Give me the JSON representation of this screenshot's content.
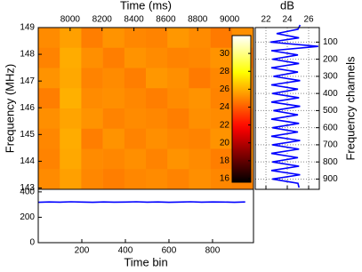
{
  "chart_data": [
    {
      "type": "heatmap",
      "xlabel": "Time (ms)",
      "ylabel": "Frequency (MHz)",
      "xlim": [
        7800,
        9150
      ],
      "xticks": [
        8000,
        8200,
        8400,
        8600,
        8800,
        9000
      ],
      "ylim": [
        142.95,
        149
      ],
      "yticks": [
        143,
        144,
        145,
        146,
        147,
        148,
        149
      ],
      "colormap": "hot",
      "clim": [
        15.6,
        32
      ],
      "cticks": [
        16,
        18,
        20,
        22,
        24,
        26,
        28,
        30
      ],
      "values": [
        [
          25.1,
          25.6,
          24.8,
          25.3,
          25.0,
          24.9,
          25.4,
          25.1,
          24.7,
          25.2
        ],
        [
          24.9,
          25.9,
          25.2,
          24.8,
          25.3,
          25.1,
          24.9,
          25.0,
          25.3,
          24.8
        ],
        [
          25.3,
          25.8,
          24.9,
          25.1,
          24.8,
          25.4,
          25.2,
          24.7,
          25.0,
          25.1
        ],
        [
          24.8,
          26.0,
          25.1,
          25.2,
          25.0,
          24.8,
          25.1,
          25.3,
          24.9,
          25.2
        ],
        [
          25.2,
          25.7,
          25.3,
          24.9,
          25.1,
          25.0,
          24.8,
          25.2,
          25.1,
          24.9
        ],
        [
          25.0,
          25.9,
          24.8,
          25.3,
          24.9,
          25.2,
          25.0,
          24.9,
          25.3,
          25.0
        ],
        [
          24.9,
          25.8,
          25.1,
          25.0,
          25.2,
          24.9,
          25.3,
          25.1,
          24.8,
          25.2
        ],
        [
          25.1,
          25.6,
          25.0,
          24.8,
          25.0,
          25.1,
          24.9,
          25.2,
          25.0,
          24.9
        ]
      ]
    },
    {
      "type": "line",
      "xlabel": "dB",
      "ylabel": "Frequency channels",
      "color": "#0000ff",
      "grid": true,
      "xlim": [
        21,
        27
      ],
      "xticks": [
        22,
        24,
        26
      ],
      "ylim": [
        15,
        960
      ],
      "yticks": [
        100,
        200,
        300,
        400,
        500,
        600,
        700,
        800,
        900
      ],
      "channels": [
        0,
        25,
        50,
        75,
        100,
        125,
        150,
        175,
        200,
        225,
        250,
        275,
        300,
        325,
        350,
        375,
        400,
        425,
        450,
        475,
        500,
        525,
        550,
        575,
        600,
        625,
        650,
        675,
        700,
        725,
        750,
        775,
        800,
        825,
        850,
        875,
        900,
        925,
        950
      ],
      "values": [
        25.2,
        25.0,
        23.0,
        25.1,
        22.4,
        26.9,
        22.5,
        25.0,
        22.6,
        25.1,
        22.5,
        25.0,
        22.7,
        25.2,
        22.5,
        25.0,
        22.6,
        25.1,
        22.5,
        25.2,
        22.7,
        25.0,
        22.5,
        25.1,
        22.6,
        25.0,
        22.5,
        25.2,
        22.6,
        25.1,
        22.5,
        25.0,
        22.6,
        25.1,
        22.5,
        25.2,
        22.6,
        25.0,
        25.1
      ]
    },
    {
      "type": "line",
      "xlabel": "Time bin",
      "color": "#0000ff",
      "xlim": [
        0,
        988
      ],
      "xticks": [
        200,
        400,
        600,
        800
      ],
      "ylim": [
        0,
        420
      ],
      "yticks": [
        0,
        200,
        400
      ],
      "x": [
        0,
        50,
        100,
        150,
        200,
        250,
        300,
        350,
        400,
        450,
        500,
        550,
        600,
        650,
        700,
        750,
        800,
        850,
        900,
        950
      ],
      "values": [
        318,
        321,
        319,
        322,
        320,
        318,
        321,
        319,
        320,
        322,
        319,
        321,
        318,
        320,
        322,
        319,
        321,
        320,
        318,
        321
      ]
    }
  ]
}
